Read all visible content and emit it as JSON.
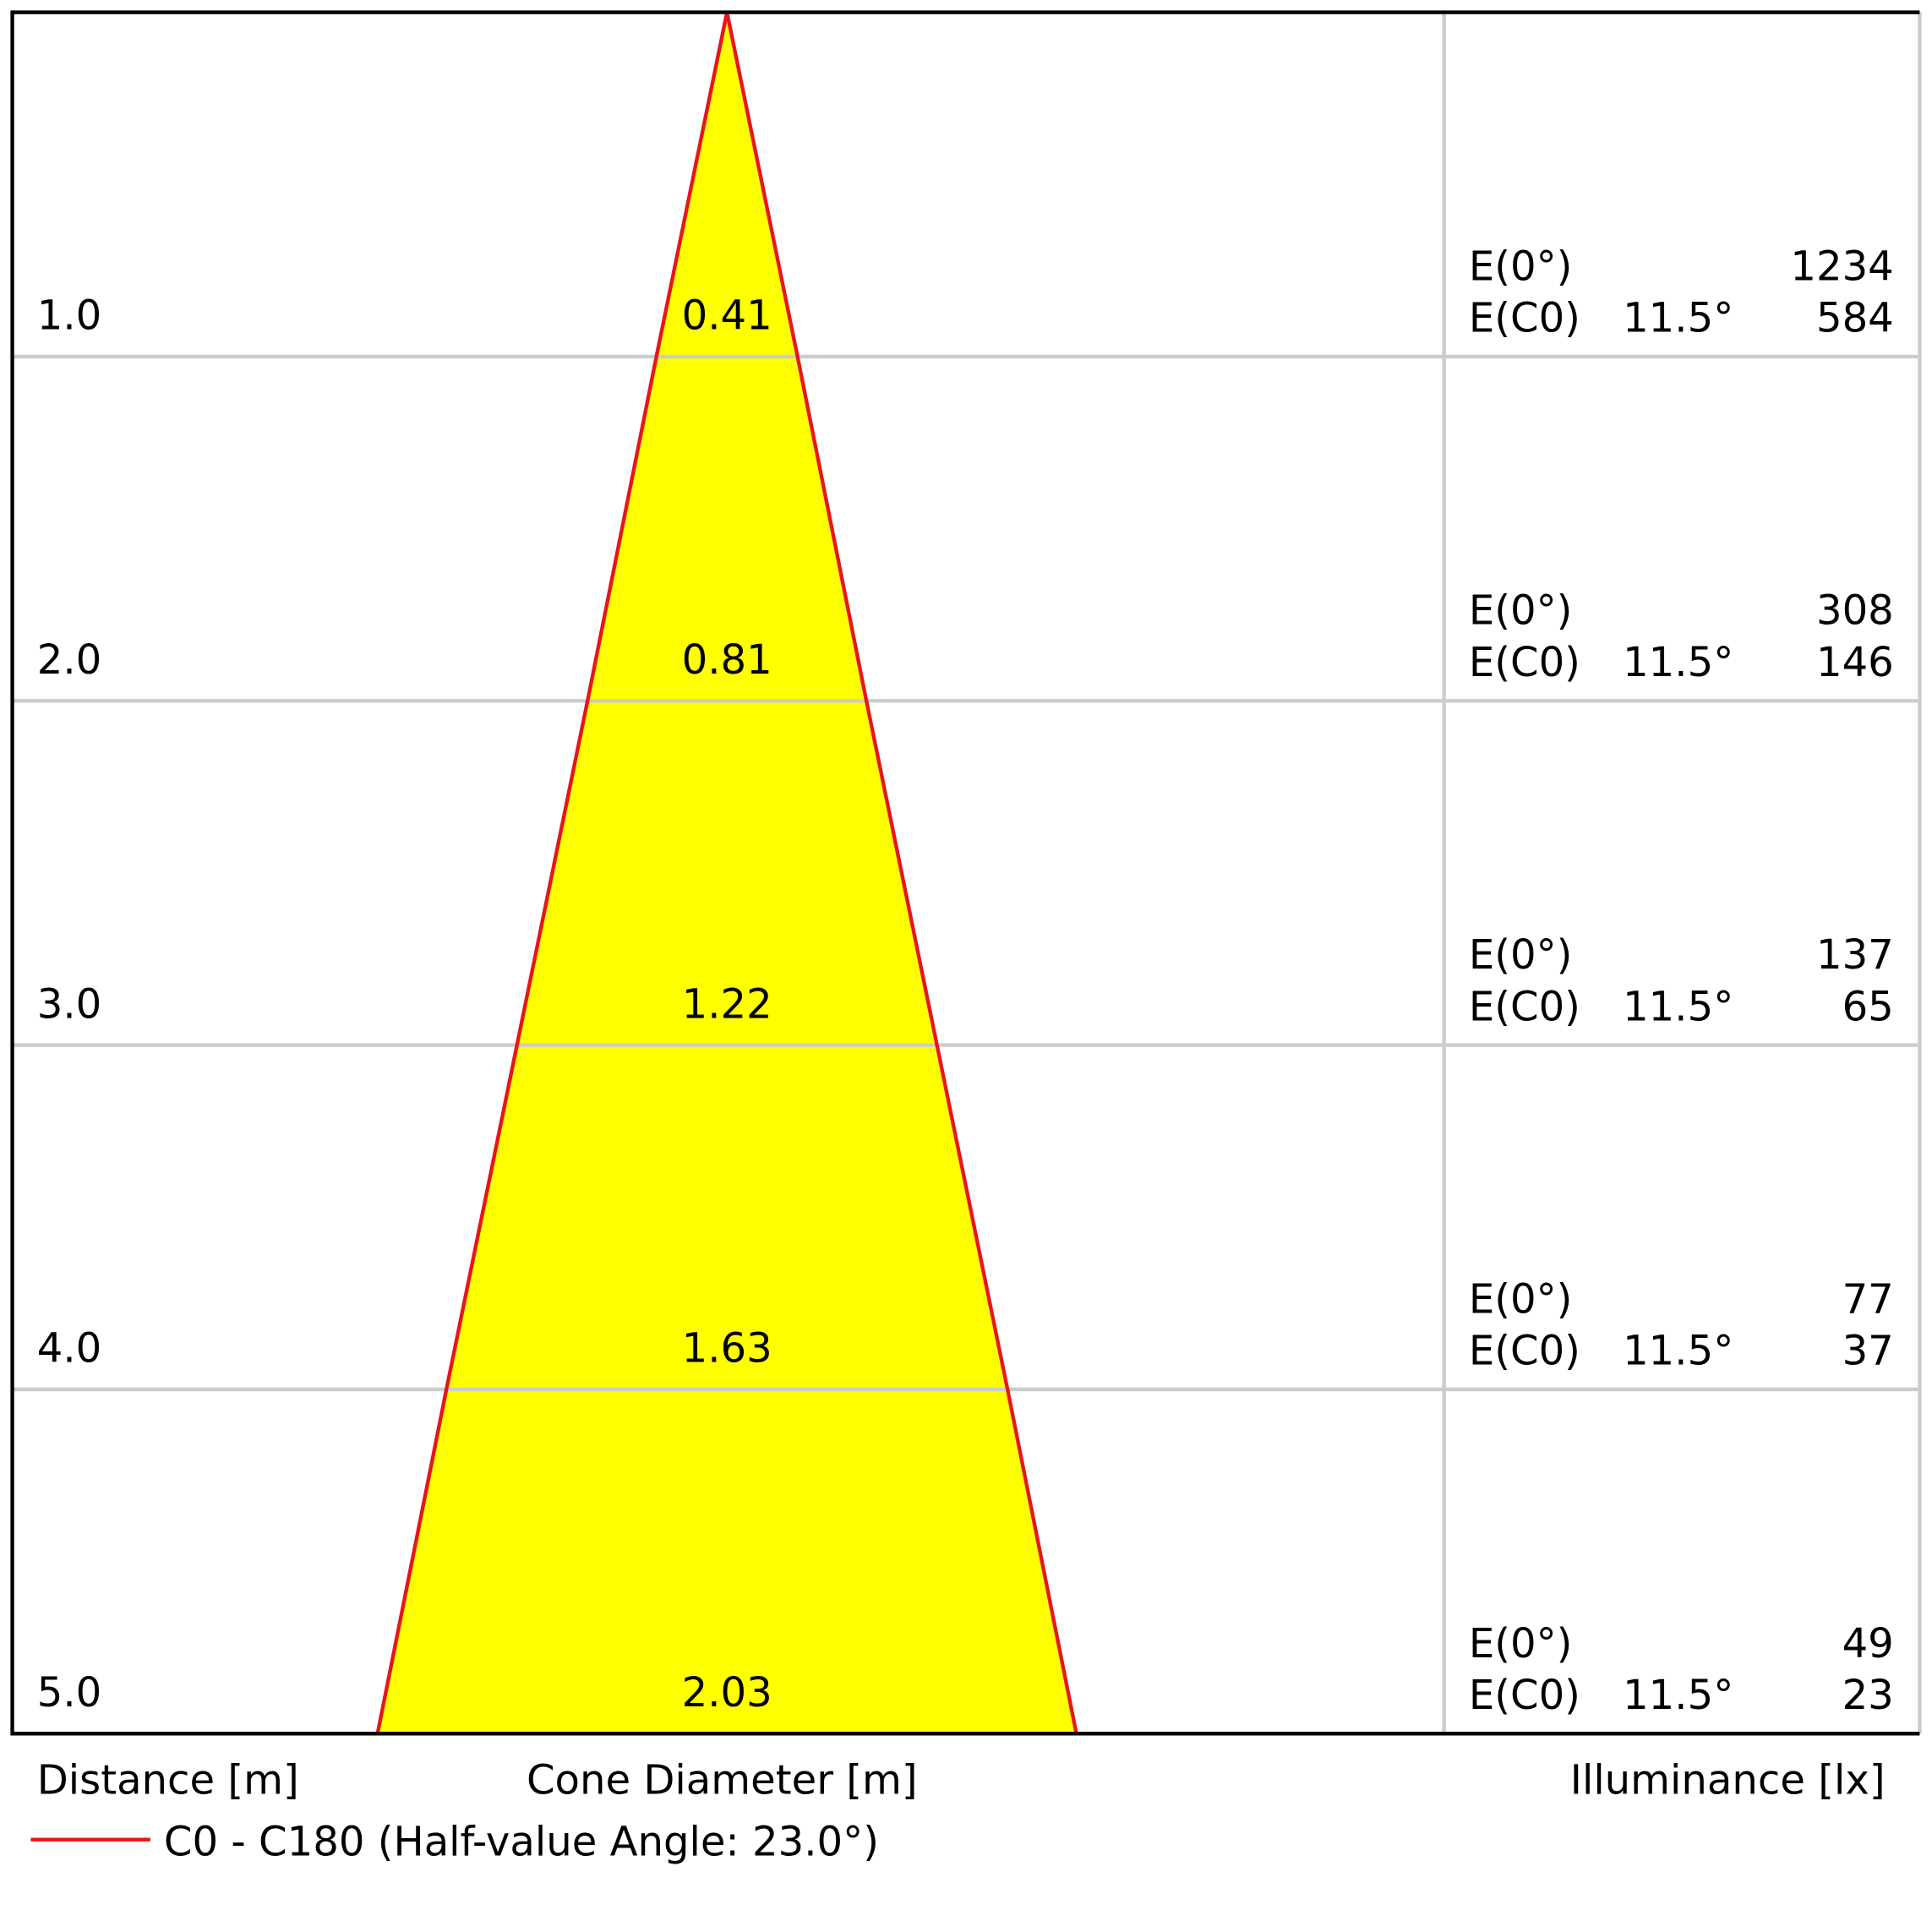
{
  "chart_data": {
    "type": "cone",
    "rows": [
      {
        "distance": {
          "value": 1,
          "label": "1.0"
        },
        "diameter": 0.41,
        "e0": 1234,
        "ec0": 584,
        "angle": "11.5°"
      },
      {
        "distance": {
          "value": 2,
          "label": "2.0"
        },
        "diameter": 0.81,
        "e0": 308,
        "ec0": 146,
        "angle": "11.5°"
      },
      {
        "distance": {
          "value": 3,
          "label": "3.0"
        },
        "diameter": 1.22,
        "e0": 137,
        "ec0": 65,
        "angle": "11.5°"
      },
      {
        "distance": {
          "value": 4,
          "label": "4.0"
        },
        "diameter": 1.63,
        "e0": 77,
        "ec0": 37,
        "angle": "11.5°"
      },
      {
        "distance": {
          "value": 5,
          "label": "5.0"
        },
        "diameter": 2.03,
        "e0": 49,
        "ec0": 23,
        "angle": "11.5°"
      }
    ],
    "e0_label": "E(0°)",
    "ec0_label": "E(C0)",
    "distance_title": "Distance [m]",
    "diameter_title": "Cone Diameter [m]",
    "illuminance_title": "Illuminance [lx]",
    "legend": "C0 - C180 (Half-value Angle: 23.0°)",
    "line_color": "#e8141b",
    "fill_color": "#ffff00"
  }
}
